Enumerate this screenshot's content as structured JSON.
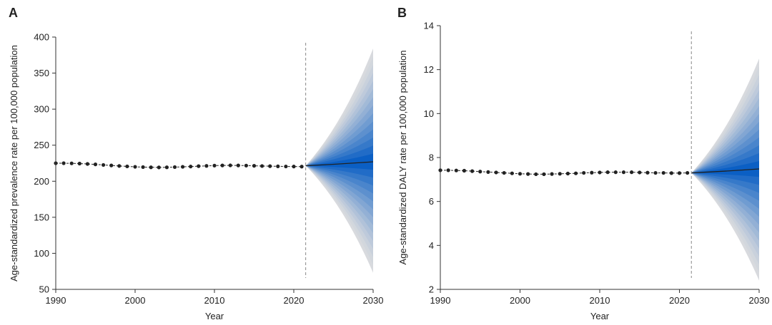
{
  "chart_data": [
    {
      "panel": "A",
      "type": "line",
      "xlabel": "Year",
      "ylabel": "Age-standardized prevalence rate per 100,000 population",
      "xlim": [
        1990,
        2030
      ],
      "ylim": [
        50,
        400
      ],
      "xticks": [
        1990,
        2000,
        2010,
        2020,
        2030
      ],
      "yticks": [
        50,
        100,
        150,
        200,
        250,
        300,
        350,
        400
      ],
      "projection_start": 2021.5,
      "observed": {
        "x": [
          1990,
          1991,
          1992,
          1993,
          1994,
          1995,
          1996,
          1997,
          1998,
          1999,
          2000,
          2001,
          2002,
          2003,
          2004,
          2005,
          2006,
          2007,
          2008,
          2009,
          2010,
          2011,
          2012,
          2013,
          2014,
          2015,
          2016,
          2017,
          2018,
          2019,
          2020,
          2021
        ],
        "y": [
          225.0,
          225.0,
          224.8,
          224.5,
          224.0,
          223.4,
          222.6,
          221.9,
          221.2,
          220.6,
          220.0,
          219.6,
          219.3,
          219.2,
          219.3,
          219.6,
          220.0,
          220.4,
          220.9,
          221.3,
          221.7,
          221.9,
          222.0,
          221.9,
          221.7,
          221.4,
          221.1,
          220.9,
          220.7,
          220.5,
          220.4,
          220.3
        ]
      },
      "projection": {
        "x": [
          2021.5,
          2030
        ],
        "median": [
          221.5,
          227
        ],
        "lower_bound": [
          221.5,
          73
        ],
        "upper_bound": [
          221.5,
          384
        ]
      }
    },
    {
      "panel": "B",
      "type": "line",
      "xlabel": "Year",
      "ylabel": "Age-standardized DALY rate per 100,000 population",
      "xlim": [
        1990,
        2030
      ],
      "ylim": [
        2,
        14
      ],
      "xticks": [
        1990,
        2000,
        2010,
        2020,
        2030
      ],
      "yticks": [
        2,
        4,
        6,
        8,
        10,
        12,
        14
      ],
      "projection_start": 2021.5,
      "observed": {
        "x": [
          1990,
          1991,
          1992,
          1993,
          1994,
          1995,
          1996,
          1997,
          1998,
          1999,
          2000,
          2001,
          2002,
          2003,
          2004,
          2005,
          2006,
          2007,
          2008,
          2009,
          2010,
          2011,
          2012,
          2013,
          2014,
          2015,
          2016,
          2017,
          2018,
          2019,
          2020,
          2021
        ],
        "y": [
          7.42,
          7.42,
          7.41,
          7.4,
          7.38,
          7.36,
          7.34,
          7.32,
          7.3,
          7.28,
          7.26,
          7.25,
          7.24,
          7.24,
          7.25,
          7.26,
          7.27,
          7.28,
          7.3,
          7.31,
          7.32,
          7.33,
          7.33,
          7.33,
          7.33,
          7.32,
          7.31,
          7.3,
          7.3,
          7.29,
          7.29,
          7.3
        ]
      },
      "projection": {
        "x": [
          2021.5,
          2030
        ],
        "median": [
          7.3,
          7.48
        ],
        "lower_bound": [
          7.3,
          2.4
        ],
        "upper_bound": [
          7.3,
          12.5
        ]
      }
    }
  ],
  "colors": {
    "fan_outer": "#d8dade",
    "fan_inner": "#0b5fc4",
    "points": "#222222",
    "median_line": "#222222",
    "divider": "#888888",
    "axis": "#333333"
  }
}
